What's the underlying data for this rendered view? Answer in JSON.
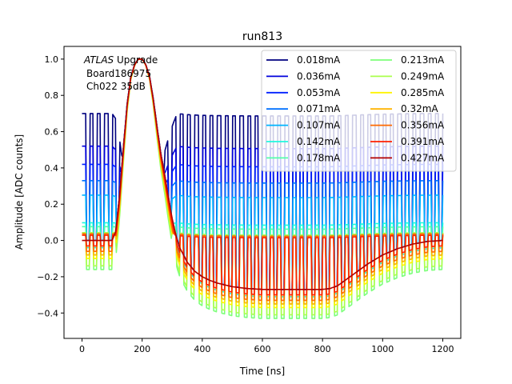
{
  "chart_data": {
    "type": "line",
    "title": "run813",
    "xlabel": "Time [ns]",
    "ylabel": "Amplitude [ADC counts]",
    "xlim": [
      -60,
      1260
    ],
    "ylim": [
      -0.54,
      1.07
    ],
    "xticks": [
      0,
      200,
      400,
      600,
      800,
      1000,
      1200
    ],
    "yticks": [
      -0.4,
      -0.2,
      0.0,
      0.2,
      0.4,
      0.6,
      0.8,
      1.0
    ],
    "xtick_labels": [
      "0",
      "200",
      "400",
      "600",
      "800",
      "1000",
      "1200"
    ],
    "ytick_labels": [
      "−0.4",
      "−0.2",
      "0.0",
      "0.2",
      "0.4",
      "0.6",
      "0.8",
      "1.0"
    ],
    "grid": false,
    "legend_placement": "top-right",
    "legend_columns": 2,
    "annotation": {
      "line1_italic": "ATLAS",
      "line1_rest": " Upgrade",
      "line2": "Board186975",
      "line3": "Ch022 35dB"
    },
    "sample_times_ns": [
      0,
      25,
      50,
      75,
      100,
      112,
      125,
      137,
      150,
      162,
      175,
      187,
      200,
      212,
      225,
      237,
      250,
      262,
      275,
      287,
      300,
      312,
      325,
      350,
      375,
      400,
      425,
      450,
      475,
      500,
      525,
      550,
      600,
      650,
      700,
      750,
      775,
      800,
      825,
      850,
      875,
      900,
      925,
      950,
      1000,
      1050,
      1100,
      1150,
      1200
    ],
    "series": [
      {
        "name": "0.018mA",
        "color": "#00007f",
        "offset": 0.0,
        "ripple": 0.7
      },
      {
        "name": "0.036mA",
        "color": "#0000dc",
        "offset": 0.0,
        "ripple": 0.52
      },
      {
        "name": "0.053mA",
        "color": "#0020ff",
        "offset": 0.0,
        "ripple": 0.42
      },
      {
        "name": "0.071mA",
        "color": "#0070ff",
        "offset": 0.0,
        "ripple": 0.33
      },
      {
        "name": "0.107mA",
        "color": "#00b4ff",
        "offset": 0.0,
        "ripple": 0.25
      },
      {
        "name": "0.142mA",
        "color": "#1ff8de",
        "offset": -0.04,
        "ripple": 0.1
      },
      {
        "name": "0.178mA",
        "color": "#54ffaa",
        "offset": -0.08,
        "ripple": 0.08
      },
      {
        "name": "0.213mA",
        "color": "#7dff7a",
        "offset": -0.16,
        "ripple": 0.05
      },
      {
        "name": "0.249mA",
        "color": "#aaff4d",
        "offset": -0.14,
        "ripple": 0.05
      },
      {
        "name": "0.285mA",
        "color": "#fff400",
        "offset": -0.1,
        "ripple": 0.04
      },
      {
        "name": "0.32mA",
        "color": "#ffb400",
        "offset": -0.08,
        "ripple": 0.04
      },
      {
        "name": "0.356mA",
        "color": "#ff6a00",
        "offset": -0.06,
        "ripple": 0.04
      },
      {
        "name": "0.391mA",
        "color": "#ff2000",
        "offset": -0.03,
        "ripple": 0.03
      },
      {
        "name": "0.427mA",
        "color": "#b20000",
        "offset": 0.0,
        "ripple": 0.0
      }
    ],
    "base_shape": [
      0,
      0,
      0,
      0,
      0,
      0.05,
      0.25,
      0.5,
      0.75,
      0.9,
      0.97,
      1.0,
      1.0,
      0.97,
      0.9,
      0.78,
      0.62,
      0.48,
      0.36,
      0.24,
      0.12,
      0.03,
      -0.04,
      -0.12,
      -0.17,
      -0.2,
      -0.22,
      -0.235,
      -0.245,
      -0.255,
      -0.26,
      -0.265,
      -0.27,
      -0.27,
      -0.27,
      -0.27,
      -0.27,
      -0.27,
      -0.265,
      -0.25,
      -0.22,
      -0.19,
      -0.16,
      -0.13,
      -0.08,
      -0.045,
      -0.02,
      -0.005,
      0.0
    ]
  }
}
